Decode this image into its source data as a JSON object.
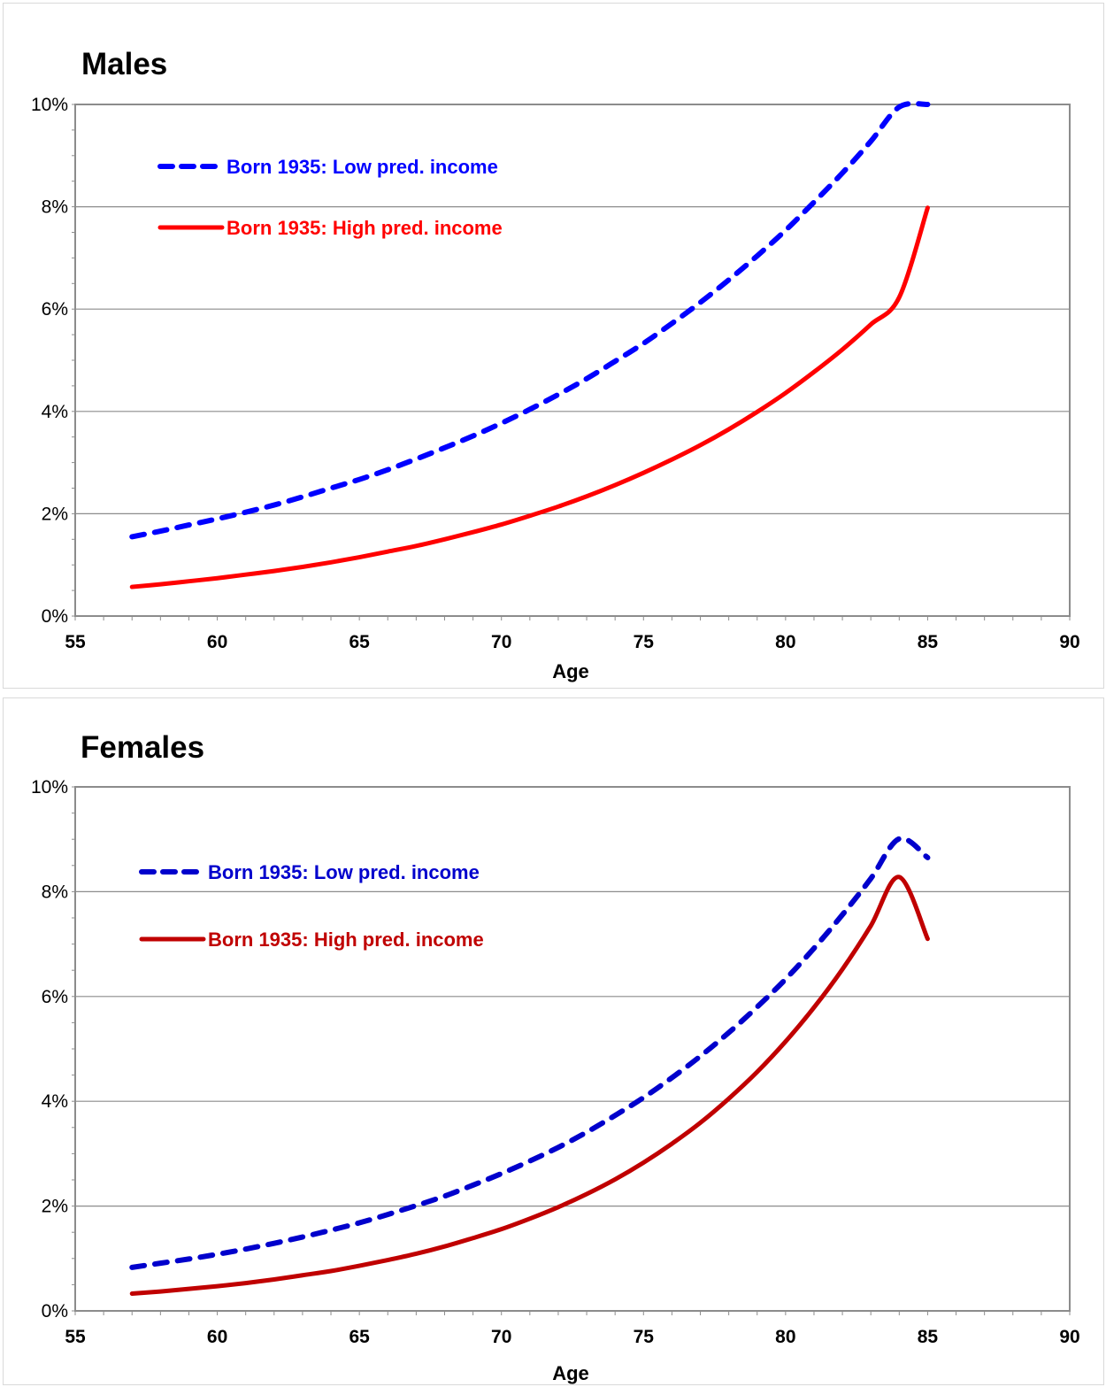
{
  "chart_data": [
    {
      "type": "line",
      "title": "Males",
      "xlabel": "Age",
      "ylabel": "",
      "xlim": [
        55,
        90
      ],
      "ylim": [
        0,
        10
      ],
      "x_ticks": [
        "55",
        "60",
        "65",
        "70",
        "75",
        "80",
        "85",
        "90"
      ],
      "y_ticks": [
        "0%",
        "2%",
        "4%",
        "6%",
        "8%",
        "10%"
      ],
      "grid": true,
      "legend_position": "top-left",
      "x": [
        57,
        58,
        59,
        60,
        61,
        62,
        63,
        64,
        65,
        66,
        67,
        68,
        69,
        70,
        71,
        72,
        73,
        74,
        75,
        76,
        77,
        78,
        79,
        80,
        81,
        82,
        83,
        84,
        85
      ],
      "series": [
        {
          "name": "Born 1935: Low pred. income",
          "color": "#0000ff",
          "dash": "dashed",
          "values": [
            1.55,
            1.66,
            1.78,
            1.9,
            2.03,
            2.17,
            2.33,
            2.5,
            2.67,
            2.86,
            3.07,
            3.29,
            3.52,
            3.77,
            4.04,
            4.33,
            4.64,
            4.98,
            5.33,
            5.72,
            6.13,
            6.57,
            7.04,
            7.54,
            8.09,
            8.66,
            9.28,
            9.95,
            10.0
          ]
        },
        {
          "name": "Born 1935: High pred. income",
          "color": "#ff0000",
          "dash": "solid",
          "values": [
            0.57,
            0.62,
            0.68,
            0.74,
            0.81,
            0.88,
            0.96,
            1.05,
            1.15,
            1.26,
            1.37,
            1.5,
            1.64,
            1.79,
            1.96,
            2.14,
            2.34,
            2.56,
            2.8,
            3.06,
            3.34,
            3.65,
            3.99,
            4.36,
            4.77,
            5.21,
            5.7,
            6.23,
            7.98
          ]
        }
      ]
    },
    {
      "type": "line",
      "title": "Females",
      "xlabel": "Age",
      "ylabel": "",
      "xlim": [
        55,
        90
      ],
      "ylim": [
        0,
        10
      ],
      "x_ticks": [
        "55",
        "60",
        "65",
        "70",
        "75",
        "80",
        "85",
        "90"
      ],
      "y_ticks": [
        "0%",
        "2%",
        "4%",
        "6%",
        "8%",
        "10%"
      ],
      "grid": true,
      "legend_position": "top-left",
      "x": [
        57,
        58,
        59,
        60,
        61,
        62,
        63,
        64,
        65,
        66,
        67,
        68,
        69,
        70,
        71,
        72,
        73,
        74,
        75,
        76,
        77,
        78,
        79,
        80,
        81,
        82,
        83,
        84,
        85
      ],
      "series": [
        {
          "name": "Born 1935: Low pred. income",
          "color": "#0000cc",
          "dash": "dashed",
          "values": [
            0.83,
            0.91,
            0.99,
            1.08,
            1.18,
            1.29,
            1.41,
            1.54,
            1.68,
            1.84,
            2.01,
            2.19,
            2.4,
            2.62,
            2.86,
            3.12,
            3.41,
            3.73,
            4.07,
            4.45,
            4.86,
            5.31,
            5.8,
            6.33,
            6.92,
            7.56,
            8.25,
            9.01,
            8.65
          ]
        },
        {
          "name": "Born 1935: High pred. income",
          "color": "#c00000",
          "dash": "solid",
          "values": [
            0.33,
            0.37,
            0.42,
            0.47,
            0.53,
            0.6,
            0.68,
            0.76,
            0.86,
            0.97,
            1.09,
            1.23,
            1.39,
            1.56,
            1.76,
            1.98,
            2.23,
            2.51,
            2.83,
            3.19,
            3.59,
            4.05,
            4.56,
            5.14,
            5.79,
            6.52,
            7.35,
            8.28,
            7.1
          ]
        }
      ]
    }
  ]
}
